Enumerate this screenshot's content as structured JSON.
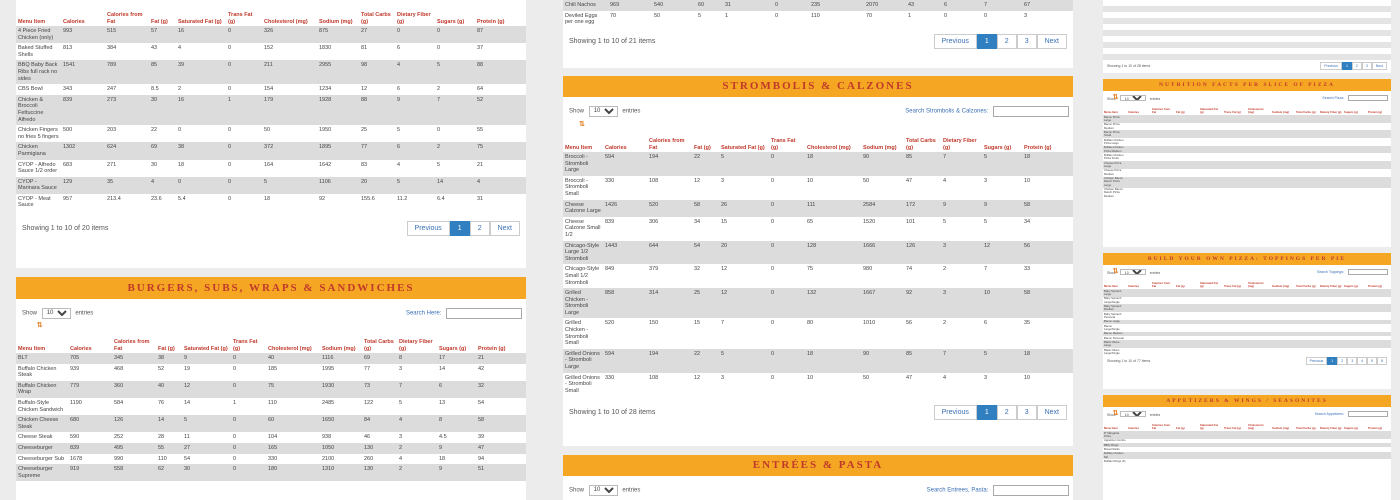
{
  "col1": {
    "headers": [
      "Menu Item",
      "Calories",
      "Calories from Fat",
      "Fat (g)",
      "Saturated Fat (g)",
      "Trans Fat (g)",
      "Cholesterol (mg)",
      "Sodium (mg)",
      "Total Carbs (g)",
      "Dietary Fiber (g)",
      "Sugars (g)",
      "Protein (g)"
    ],
    "rows": [
      [
        "4 Piece Fried Chicken (only)",
        "993",
        "515",
        "57",
        "16",
        "0",
        "326",
        "875",
        "27",
        "0",
        "0",
        "87"
      ],
      [
        "Baked Stuffed Shells",
        "813",
        "384",
        "43",
        "4",
        "0",
        "152",
        "1830",
        "81",
        "6",
        "0",
        "37"
      ],
      [
        "BBQ Baby Back Ribs full rack no sides",
        "1541",
        "789",
        "85",
        "39",
        "0",
        "211",
        "2955",
        "98",
        "4",
        "5",
        "88"
      ],
      [
        "CBS Bowl",
        "343",
        "247",
        "8.5",
        "2",
        "0",
        "154",
        "1234",
        "12",
        "6",
        "2",
        "64"
      ],
      [
        "Chicken & Broccoli Fettuccine Alfredo",
        "839",
        "273",
        "30",
        "16",
        "1",
        "179",
        "1928",
        "88",
        "9",
        "7",
        "52"
      ],
      [
        "Chicken Fingers no fries 5 fingers",
        "500",
        "203",
        "22",
        "0",
        "0",
        "50",
        "1950",
        "25",
        "5",
        "0",
        "55"
      ],
      [
        "Chicken Parmigiana",
        "1302",
        "624",
        "69",
        "38",
        "0",
        "372",
        "1895",
        "77",
        "6",
        "2",
        "75"
      ],
      [
        "CYOP - Alfredo Sauce 1/2 order",
        "683",
        "271",
        "30",
        "18",
        "0",
        "164",
        "1642",
        "83",
        "4",
        "5",
        "21"
      ],
      [
        "CYOP - Marinara Sauce",
        "129",
        "35",
        "4",
        "0",
        "0",
        "5",
        "1106",
        "20",
        "5",
        "14",
        "4"
      ],
      [
        "CYOP - Meat Sauce",
        "957",
        "213.4",
        "23.6",
        "5.4",
        "0",
        "18",
        "92",
        "155.6",
        "11.2",
        "6.4",
        "31"
      ]
    ],
    "info": "Showing 1 to 10 of 20 items",
    "pager": [
      "Previous",
      "1",
      "2",
      "Next"
    ]
  },
  "burgers": {
    "title": "Burgers, Subs, Wraps & Sandwiches",
    "show_label": "Show",
    "entries_value": "10",
    "entries_label": "entries",
    "search_label": "Search Here:",
    "headers": [
      "Menu Item",
      "Calories",
      "Calories from Fat",
      "Fat (g)",
      "Saturated Fat (g)",
      "Trans Fat (g)",
      "Cholesterol (mg)",
      "Sodium (mg)",
      "Total Carbs (g)",
      "Dietary Fiber (g)",
      "Sugars (g)",
      "Protein (g)"
    ],
    "rows": [
      [
        "BLT",
        "705",
        "345",
        "38",
        "9",
        "0",
        "40",
        "1116",
        "69",
        "8",
        "17",
        "21"
      ],
      [
        "Buffalo Chicken Steak",
        "939",
        "468",
        "52",
        "19",
        "0",
        "185",
        "1995",
        "77",
        "3",
        "14",
        "42"
      ],
      [
        "Buffalo Chicken Wrap",
        "779",
        "360",
        "40",
        "12",
        "0",
        "75",
        "1930",
        "73",
        "7",
        "6",
        "32"
      ],
      [
        "Buffalo-Style Chicken Sandwich",
        "1190",
        "584",
        "76",
        "14",
        "1",
        "110",
        "2485",
        "122",
        "5",
        "13",
        "54"
      ],
      [
        "Chicken Cheese Steak",
        "680",
        "126",
        "14",
        "5",
        "0",
        "60",
        "1650",
        "84",
        "4",
        "8",
        "58"
      ],
      [
        "Cheese Steak",
        "590",
        "252",
        "28",
        "11",
        "0",
        "104",
        "938",
        "46",
        "3",
        "4.5",
        "39"
      ],
      [
        "Cheeseburger",
        "839",
        "495",
        "55",
        "27",
        "0",
        "165",
        "1050",
        "130",
        "2",
        "9",
        "47"
      ],
      [
        "Cheeseburger Sub",
        "1678",
        "990",
        "110",
        "54",
        "0",
        "330",
        "2100",
        "260",
        "4",
        "18",
        "94"
      ],
      [
        "Cheeseburger Supreme",
        "919",
        "558",
        "62",
        "30",
        "0",
        "180",
        "1310",
        "130",
        "2",
        "9",
        "51"
      ]
    ]
  },
  "col2top": {
    "rows": [
      [
        "Chili Nachos",
        "969",
        "540",
        "60",
        "31",
        "0",
        "235",
        "2070",
        "43",
        "6",
        "7",
        "67"
      ],
      [
        "Deviled Eggs per one egg",
        "70",
        "50",
        "5",
        "1",
        "0",
        "110",
        "70",
        "1",
        "0",
        "0",
        "3"
      ]
    ],
    "info": "Showing 1 to 10 of 21 items",
    "pager": [
      "Previous",
      "1",
      "2",
      "3",
      "Next"
    ]
  },
  "strombolis": {
    "title": "Strombolis & Calzones",
    "show_label": "Show",
    "entries_value": "10",
    "entries_label": "entries",
    "search_label": "Search Strombolis & Calzones:",
    "headers": [
      "Menu Item",
      "Calories",
      "Calories from Fat",
      "Fat (g)",
      "Saturated Fat (g)",
      "Trans Fat (g)",
      "Cholesterol (mg)",
      "Sodium (mg)",
      "Total Carbs (g)",
      "Dietary Fiber (g)",
      "Sugars (g)",
      "Protein (g)"
    ],
    "rows": [
      [
        "Broccoli - Stromboli Large",
        "594",
        "194",
        "22",
        "5",
        "0",
        "18",
        "90",
        "85",
        "7",
        "5",
        "18"
      ],
      [
        "Broccoli - Stromboli Small",
        "330",
        "108",
        "12",
        "3",
        "0",
        "10",
        "50",
        "47",
        "4",
        "3",
        "10"
      ],
      [
        "Cheese Calzone Large",
        "1426",
        "520",
        "58",
        "26",
        "0",
        "111",
        "2584",
        "172",
        "9",
        "9",
        "58"
      ],
      [
        "Cheese Calzone Small 1/2",
        "839",
        "306",
        "34",
        "15",
        "0",
        "65",
        "1520",
        "101",
        "5",
        "5",
        "34"
      ],
      [
        "Chicago-Style Large 1/2 Stromboli",
        "1443",
        "644",
        "54",
        "20",
        "0",
        "128",
        "1666",
        "126",
        "3",
        "12",
        "56"
      ],
      [
        "Chicago-Style Small 1/2 Stromboli",
        "849",
        "379",
        "32",
        "12",
        "0",
        "75",
        "980",
        "74",
        "2",
        "7",
        "33"
      ],
      [
        "Grilled Chicken - Stromboli Large",
        "858",
        "314",
        "25",
        "12",
        "0",
        "132",
        "1667",
        "92",
        "3",
        "10",
        "58"
      ],
      [
        "Grilled Chicken - Stromboli Small",
        "520",
        "150",
        "15",
        "7",
        "0",
        "80",
        "1010",
        "56",
        "2",
        "6",
        "35"
      ],
      [
        "Grilled Onions - Stromboli Large",
        "594",
        "194",
        "22",
        "5",
        "0",
        "18",
        "90",
        "85",
        "7",
        "5",
        "18"
      ],
      [
        "Grilled Onions - Stromboli Small",
        "330",
        "108",
        "12",
        "3",
        "0",
        "10",
        "50",
        "47",
        "4",
        "3",
        "10"
      ]
    ],
    "info": "Showing 1 to 10 of 28 items",
    "pager": [
      "Previous",
      "1",
      "2",
      "3",
      "Next"
    ]
  },
  "entrees": {
    "title": "Entrées & Pasta",
    "show_label": "Show",
    "entries_value": "10",
    "entries_label": "entries",
    "search_label": "Search Entrees, Pasta:"
  },
  "col3": {
    "info1": "Showing 1 to 10 of 28 items",
    "pager1": [
      "Previous",
      "1",
      "2",
      "3",
      "Next"
    ],
    "pizza_title": "Nutrition Facts per Slice of Pizza",
    "pizza_search": "Search Pizza:",
    "pizza_headers": [
      "Menu Item",
      "Calories",
      "Calories from Fat",
      "Fat (g)",
      "Saturated Fat (g)",
      "Trans Fat (g)",
      "Cholesterol (mg)",
      "Sodium (mg)",
      "Total Carbs (g)",
      "Dietary Fiber (g)",
      "Sugars (g)",
      "Protein (g)"
    ],
    "pizza_rows": [
      [
        "Bacon Pizza Large",
        "",
        "",
        "",
        "",
        "",
        "",
        "",
        "",
        "",
        "",
        ""
      ],
      [
        "Bacon Pizza Medium",
        "",
        "",
        "",
        "",
        "",
        "",
        "",
        "",
        "",
        "",
        ""
      ],
      [
        "Bacon Pizza Small",
        "",
        "",
        "",
        "",
        "",
        "",
        "",
        "",
        "",
        "",
        ""
      ],
      [
        "Buffalo Chicken Pizza Large",
        "",
        "",
        "",
        "",
        "",
        "",
        "",
        "",
        "",
        "",
        ""
      ],
      [
        "Buffalo Chicken Pizza Medium",
        "",
        "",
        "",
        "",
        "",
        "",
        "",
        "",
        "",
        "",
        ""
      ],
      [
        "Buffalo Chicken Pizza Small",
        "",
        "",
        "",
        "",
        "",
        "",
        "",
        "",
        "",
        "",
        ""
      ],
      [
        "Cheese Pizza Large",
        "",
        "",
        "",
        "",
        "",
        "",
        "",
        "",
        "",
        "",
        ""
      ],
      [
        "Cheese Pizza Medium",
        "",
        "",
        "",
        "",
        "",
        "",
        "",
        "",
        "",
        "",
        ""
      ],
      [
        "Chicken Bacon Ranch Pizza Large",
        "",
        "",
        "",
        "",
        "",
        "",
        "",
        "",
        "",
        "",
        ""
      ],
      [
        "Chicken Bacon Ranch Pizza Medium",
        "",
        "",
        "",
        "",
        "",
        "",
        "",
        "",
        "",
        "",
        ""
      ]
    ],
    "toppings_title": "Build Your Own Pizza: Toppings per Pie",
    "toppings_search": "Search Toppings:",
    "toppings_rows": [
      [
        "Baby Spinach Large",
        "",
        "",
        "",
        "",
        "",
        "",
        "",
        "",
        "",
        "",
        ""
      ],
      [
        "Baby Spinach Large/Single",
        "",
        "",
        "",
        "",
        "",
        "",
        "",
        "",
        "",
        "",
        ""
      ],
      [
        "Baby Spinach Medium",
        "",
        "",
        "",
        "",
        "",
        "",
        "",
        "",
        "",
        "",
        ""
      ],
      [
        "Baby Spinach Personal",
        "",
        "",
        "",
        "",
        "",
        "",
        "",
        "",
        "",
        "",
        ""
      ],
      [
        "Bacon Large",
        "",
        "",
        "",
        "",
        "",
        "",
        "",
        "",
        "",
        "",
        ""
      ],
      [
        "Bacon Large/Single",
        "",
        "",
        "",
        "",
        "",
        "",
        "",
        "",
        "",
        "",
        ""
      ],
      [
        "Bacon Medium",
        "",
        "",
        "",
        "",
        "",
        "",
        "",
        "",
        "",
        "",
        ""
      ],
      [
        "Bacon Personal",
        "",
        "",
        "",
        "",
        "",
        "",
        "",
        "",
        "",
        "",
        ""
      ],
      [
        "Black Olives Large",
        "",
        "",
        "",
        "",
        "",
        "",
        "",
        "",
        "",
        "",
        ""
      ],
      [
        "Black Olives Large/Single",
        "",
        "",
        "",
        "",
        "",
        "",
        "",
        "",
        "",
        "",
        ""
      ]
    ],
    "toppings_info": "Showing 1 to 10 of 77 items",
    "toppings_pager": [
      "Previous",
      "1",
      "2",
      "3",
      "4",
      "5",
      "8"
    ],
    "appetizers_title": "Appetizers & Wings / Seasonites",
    "appetizers_search": "Search Appetizers:",
    "appetizers_rows": [
      [
        "8\" Margarita Pizza",
        "",
        "",
        "",
        "",
        "",
        "",
        "",
        "",
        "",
        "",
        ""
      ],
      [
        "Appetizer Combo",
        "",
        "",
        "",
        "",
        "",
        "",
        "",
        "",
        "",
        "",
        ""
      ],
      [
        "BBQ Wings",
        "",
        "",
        "",
        "",
        "",
        "",
        "",
        "",
        "",
        "",
        ""
      ],
      [
        "Bread Sticks",
        "",
        "",
        "",
        "",
        "",
        "",
        "",
        "",
        "",
        "",
        ""
      ],
      [
        "Buffalo Chicken Dip",
        "",
        "",
        "",
        "",
        "",
        "",
        "",
        "",
        "",
        "",
        ""
      ],
      [
        "Buffalo Wings (6)",
        "",
        "",
        "",
        "",
        "",
        "",
        "",
        "",
        "",
        "",
        ""
      ]
    ],
    "show_label": "Show",
    "entries_value": "10",
    "entries_label": "entries"
  },
  "colors": {
    "banner": "#f5a623",
    "title": "#c0392b",
    "header_text": "#c0392b",
    "accent": "#2f7fc1",
    "stripe": "#dcdcdc"
  }
}
